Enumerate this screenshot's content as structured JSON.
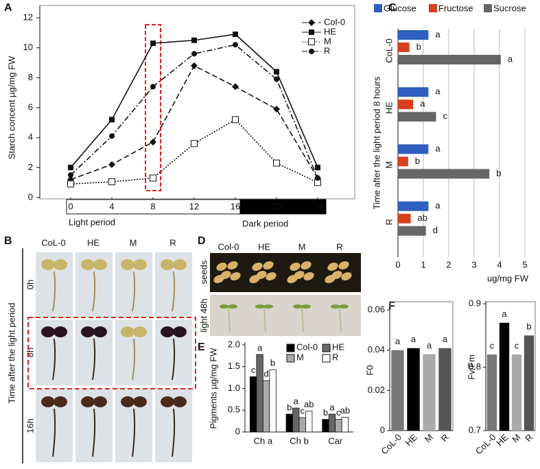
{
  "panel_labels": [
    "A",
    "B",
    "C",
    "D",
    "E",
    "F"
  ],
  "chart_data": [
    {
      "type": "line",
      "ylabel": "Starch concent µg/mg FW",
      "x": [
        0,
        4,
        8,
        12,
        16,
        20,
        24
      ],
      "xlim": [
        0,
        24
      ],
      "xticks": [
        0,
        4,
        8,
        12,
        16,
        20,
        24
      ],
      "ylim": [
        0,
        12
      ],
      "yticks": [
        0,
        2,
        4,
        6,
        8,
        10,
        12
      ],
      "annotations": [
        "Light period",
        "Dark period"
      ],
      "series": [
        {
          "name": "Col-0",
          "color": "#111111",
          "marker": "diamond",
          "dash": "8,4",
          "values": [
            1.2,
            2.2,
            3.7,
            8.8,
            7.4,
            5.9,
            1.3
          ]
        },
        {
          "name": "HE",
          "color": "#111111",
          "marker": "square",
          "dash": "none",
          "values": [
            2.0,
            5.2,
            10.3,
            10.5,
            10.9,
            8.4,
            2.0
          ]
        },
        {
          "name": "M",
          "color": "#111111",
          "marker": "open-square",
          "dash": "2,2",
          "values": [
            0.9,
            1.05,
            1.3,
            3.6,
            5.2,
            2.3,
            1.0
          ]
        },
        {
          "name": "R",
          "color": "#111111",
          "marker": "circle",
          "dash": "8,3,2,3",
          "values": [
            1.5,
            4.1,
            7.4,
            9.6,
            10.2,
            7.9,
            1.3
          ]
        }
      ]
    },
    {
      "type": "hbar",
      "xlabel": "ug/mg FW",
      "ylabel": "Time after the light period 8 hours",
      "categories": [
        "CoL-0",
        "HE",
        "M",
        "R"
      ],
      "xlim": [
        0,
        5
      ],
      "xticks": [
        0,
        1,
        2,
        3,
        4,
        5
      ],
      "grid": true,
      "series": [
        {
          "name": "Glucose",
          "color": "#2e5fc1",
          "letter_color": "#2e5fc1",
          "values": [
            1.2,
            1.2,
            1.2,
            1.2
          ],
          "letters": [
            "a",
            "a",
            "a",
            "a"
          ]
        },
        {
          "name": "Fructose",
          "color": "#d9401a",
          "letter_color": "#d9401a",
          "values": [
            0.45,
            0.6,
            0.4,
            0.5
          ],
          "letters": [
            "b",
            "a",
            "b",
            "ab"
          ]
        },
        {
          "name": "Sucrose",
          "color": "#666666",
          "letter_color": "#111111",
          "values": [
            4.05,
            1.5,
            3.6,
            1.1
          ],
          "letters": [
            "a",
            "c",
            "b",
            "d"
          ]
        }
      ]
    },
    {
      "type": "bar",
      "ylabel": "Pigments µg/mg FW",
      "categories": [
        "Ch a",
        "Ch b",
        "Car"
      ],
      "ylim": [
        0,
        2
      ],
      "yticks": [
        0,
        0.5,
        {
          "value": 1,
          "label": "1.0"
        },
        1.5,
        {
          "value": 2,
          "label": "2.0"
        }
      ],
      "series": [
        {
          "name": "Col-0",
          "color": "#000000",
          "values": [
            1.27,
            0.41,
            0.29
          ],
          "letters": [
            "c",
            "b",
            "b"
          ]
        },
        {
          "name": "HE",
          "color": "#666666",
          "values": [
            1.78,
            0.55,
            0.41
          ],
          "letters": [
            "a",
            "a",
            "a"
          ]
        },
        {
          "name": "M",
          "color": "#aaaaaa",
          "values": [
            1.18,
            0.33,
            0.29
          ],
          "letters": [
            "d",
            "c",
            "c"
          ]
        },
        {
          "name": "R",
          "color": "#ffffff",
          "values": [
            1.43,
            0.48,
            0.34
          ],
          "letters": [
            "b",
            "ab",
            "ab"
          ]
        }
      ]
    },
    {
      "type": "bar",
      "ylabel": "F0",
      "categories": [
        "CoL-0",
        "HE",
        "M",
        "R"
      ],
      "ylim": [
        0,
        0.06
      ],
      "yticks": [
        0,
        0.02,
        0.04,
        0.06
      ],
      "values": [
        0.04,
        0.041,
        0.038,
        0.041
      ],
      "colors": [
        "#777777",
        "#000000",
        "#aaaaaa",
        "#555555"
      ],
      "letters": [
        "a",
        "a",
        "a",
        "a"
      ]
    },
    {
      "type": "bar",
      "ylabel": "Fv/Fm",
      "categories": [
        "CoL-0",
        "HE",
        "M",
        "R"
      ],
      "ylim": [
        0.7,
        0.9
      ],
      "yticks": [
        0.7,
        0.8,
        0.9
      ],
      "values": [
        0.82,
        0.87,
        0.82,
        0.85
      ],
      "colors": [
        "#777777",
        "#000000",
        "#aaaaaa",
        "#555555"
      ],
      "letters": [
        "c",
        "a",
        "c",
        "b"
      ]
    }
  ],
  "photo_panel_b": {
    "columns": [
      "CoL-0",
      "HE",
      "M",
      "R"
    ],
    "rows": [
      "0h",
      "8h",
      "16h"
    ],
    "side_label": "Time after the light period"
  },
  "photo_panel_d": {
    "columns": [
      "Col-0",
      "HE",
      "M",
      "R"
    ],
    "rows": [
      "seeds",
      "light 48h"
    ]
  }
}
